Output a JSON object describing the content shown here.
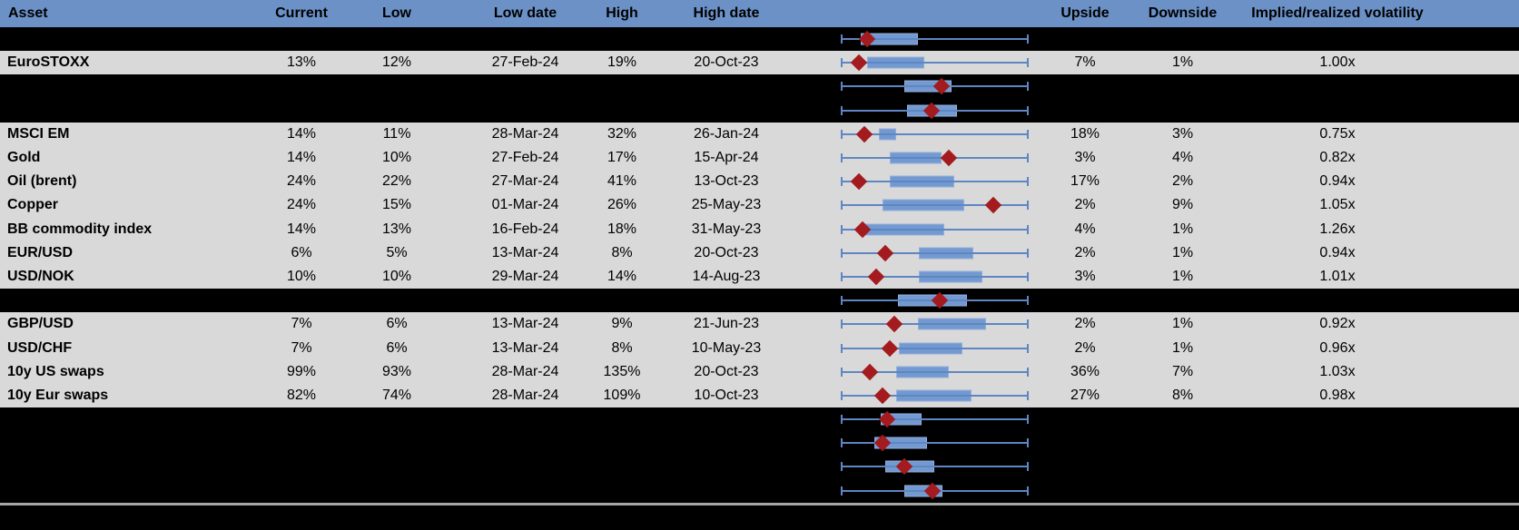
{
  "table": {
    "columns": {
      "asset": "Asset",
      "current": "Current",
      "low": "Low",
      "low_date": "Low date",
      "high": "High",
      "high_date": "High date",
      "upside": "Upside",
      "downside": "Downside",
      "impl_real": "Implied/realized volatility"
    },
    "rows": [
      {
        "type": "hidden",
        "box": {
          "lo": 10.7,
          "hi": 41.0,
          "marker": 13.7
        }
      },
      {
        "type": "data",
        "asset": "EuroSTOXX",
        "current": "13%",
        "low": "12%",
        "low_date": "27-Feb-24",
        "high": "19%",
        "high_date": "20-Oct-23",
        "upside": "7%",
        "downside": "1%",
        "impl_real": "1.00x",
        "box": {
          "lo": 13.7,
          "hi": 44.4,
          "marker": 9.3
        }
      },
      {
        "type": "hidden",
        "box": {
          "lo": 34.1,
          "hi": 59.5,
          "marker": 53.7
        }
      },
      {
        "type": "hidden",
        "box": {
          "lo": 35.6,
          "hi": 62.0,
          "marker": 48.3
        }
      },
      {
        "type": "data",
        "asset": "MSCI EM",
        "current": "14%",
        "low": "11%",
        "low_date": "28-Mar-24",
        "high": "32%",
        "high_date": "26-Jan-24",
        "upside": "18%",
        "downside": "3%",
        "impl_real": "0.75x",
        "box": {
          "lo": 20.0,
          "hi": 29.3,
          "marker": 12.2
        }
      },
      {
        "type": "data",
        "asset": "Gold",
        "current": "14%",
        "low": "10%",
        "low_date": "27-Feb-24",
        "high": "17%",
        "high_date": "15-Apr-24",
        "upside": "3%",
        "downside": "4%",
        "impl_real": "0.82x",
        "box": {
          "lo": 26.3,
          "hi": 53.7,
          "marker": 57.6
        }
      },
      {
        "type": "data",
        "asset": "Oil (brent)",
        "current": "24%",
        "low": "22%",
        "low_date": "27-Mar-24",
        "high": "41%",
        "high_date": "13-Oct-23",
        "upside": "17%",
        "downside": "2%",
        "impl_real": "0.94x",
        "box": {
          "lo": 26.3,
          "hi": 60.5,
          "marker": 9.3
        }
      },
      {
        "type": "data",
        "asset": "Copper",
        "current": "24%",
        "low": "15%",
        "low_date": "01-Mar-24",
        "high": "26%",
        "high_date": "25-May-23",
        "upside": "2%",
        "downside": "9%",
        "impl_real": "1.05x",
        "box": {
          "lo": 22.0,
          "hi": 65.9,
          "marker": 81.5
        }
      },
      {
        "type": "data",
        "asset": "BB commodity index",
        "current": "14%",
        "low": "13%",
        "low_date": "16-Feb-24",
        "high": "18%",
        "high_date": "31-May-23",
        "upside": "4%",
        "downside": "1%",
        "impl_real": "1.26x",
        "box": {
          "lo": 12.2,
          "hi": 55.6,
          "marker": 11.7
        }
      },
      {
        "type": "data",
        "asset": "EUR/USD",
        "current": "6%",
        "low": "5%",
        "low_date": "13-Mar-24",
        "high": "8%",
        "high_date": "20-Oct-23",
        "upside": "2%",
        "downside": "1%",
        "impl_real": "0.94x",
        "box": {
          "lo": 41.5,
          "hi": 71.2,
          "marker": 23.9
        }
      },
      {
        "type": "data",
        "asset": "USD/NOK",
        "current": "10%",
        "low": "10%",
        "low_date": "29-Mar-24",
        "high": "14%",
        "high_date": "14-Aug-23",
        "upside": "3%",
        "downside": "1%",
        "impl_real": "1.01x",
        "box": {
          "lo": 41.5,
          "hi": 76.1,
          "marker": 19.0
        }
      },
      {
        "type": "hidden",
        "box": {
          "lo": 30.7,
          "hi": 67.8,
          "marker": 52.7
        }
      },
      {
        "type": "data",
        "asset": "GBP/USD",
        "current": "7%",
        "low": "6%",
        "low_date": "13-Mar-24",
        "high": "9%",
        "high_date": "21-Jun-23",
        "upside": "2%",
        "downside": "1%",
        "impl_real": "0.92x",
        "box": {
          "lo": 41.0,
          "hi": 78.0,
          "marker": 28.3
        }
      },
      {
        "type": "data",
        "asset": "USD/CHF",
        "current": "7%",
        "low": "6%",
        "low_date": "13-Mar-24",
        "high": "8%",
        "high_date": "10-May-23",
        "upside": "2%",
        "downside": "1%",
        "impl_real": "0.96x",
        "box": {
          "lo": 31.2,
          "hi": 64.9,
          "marker": 25.9
        }
      },
      {
        "type": "data",
        "asset": "10y US swaps",
        "current": "99%",
        "low": "93%",
        "low_date": "28-Mar-24",
        "high": "135%",
        "high_date": "20-Oct-23",
        "upside": "36%",
        "downside": "7%",
        "impl_real": "1.03x",
        "box": {
          "lo": 29.3,
          "hi": 58.0,
          "marker": 15.6
        }
      },
      {
        "type": "data",
        "asset": "10y Eur swaps",
        "current": "82%",
        "low": "74%",
        "low_date": "28-Mar-24",
        "high": "109%",
        "high_date": "10-Oct-23",
        "upside": "27%",
        "downside": "8%",
        "impl_real": "0.98x",
        "box": {
          "lo": 29.3,
          "hi": 70.2,
          "marker": 22.0
        }
      },
      {
        "type": "hidden",
        "box": {
          "lo": 21.0,
          "hi": 43.4,
          "marker": 24.4
        }
      },
      {
        "type": "hidden",
        "box": {
          "lo": 18.0,
          "hi": 46.3,
          "marker": 22.0
        }
      },
      {
        "type": "hidden",
        "box": {
          "lo": 23.9,
          "hi": 49.8,
          "marker": 34.1
        }
      },
      {
        "type": "hidden",
        "box": {
          "lo": 34.1,
          "hi": 54.6,
          "marker": 48.8
        }
      }
    ]
  },
  "colors": {
    "header_bg": "#6B91C7",
    "header_text": "#FFFFFF",
    "row_bg": "#D9D9D9",
    "hidden_bg": "#000000",
    "box_fill": "#7399D1",
    "box_border": "#93AEDB",
    "whisker": "#5E86C2",
    "marker": "#A31B1E",
    "divider": "#A6A6A6"
  }
}
